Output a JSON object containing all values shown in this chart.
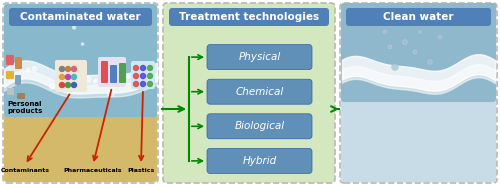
{
  "panel1_title": "Contaminated water",
  "panel2_title": "Treatment technologies",
  "panel3_title": "Clean water",
  "treatment_boxes": [
    "Physical",
    "Chemical",
    "Biological",
    "Hybrid"
  ],
  "panel1_labels_bottom": [
    "Contaminants",
    "Pharmaceuticals",
    "Plastics"
  ],
  "panel1_label_left": "Personal\nproducts",
  "panel1_bg_water": "#8abcd1",
  "panel1_bg_sandy": "#d4b96a",
  "panel2_bg": "#d4e8c0",
  "panel3_bg_upper": "#a8c8dc",
  "panel3_bg_lower": "#c8dce8",
  "panel3_bg_bottom": "#d0dce8",
  "outer_bg_color": "#f5f0e0",
  "outer_border_color": "#b0b0b0",
  "title_box_color": "#5080b8",
  "title_text_color": "#ffffff",
  "treatment_box_color": "#6090b8",
  "treatment_text_color": "#ffffff",
  "arrow_color_red": "#cc2200",
  "arrow_color_green": "#008800",
  "figsize": [
    5.0,
    1.86
  ],
  "dpi": 100
}
